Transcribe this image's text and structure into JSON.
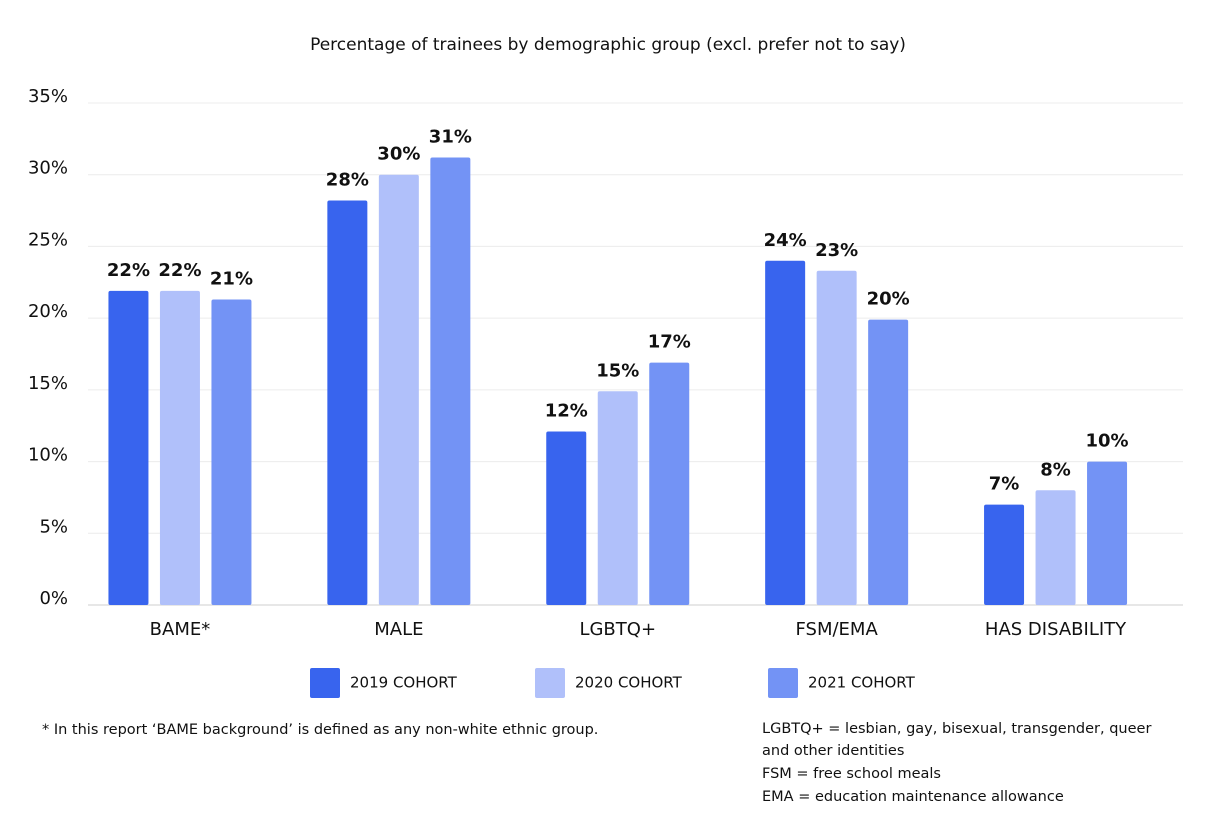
{
  "chart_data": {
    "type": "bar",
    "title": "Percentage of trainees by demographic group (excl. prefer not to say)",
    "categories": [
      "BAME*",
      "MALE",
      "LGBTQ+",
      "FSM/EMA",
      "HAS DISABILITY"
    ],
    "series": [
      {
        "name": "2019 COHORT",
        "color": "#3864ee",
        "values": [
          21.9,
          28.2,
          12.1,
          24,
          7
        ],
        "value_labels": [
          "22%",
          "28%",
          "12%",
          "24%",
          "7%"
        ]
      },
      {
        "name": "2020 COHORT",
        "color": "#b0c0fa",
        "values": [
          21.9,
          30,
          14.9,
          23.3,
          8
        ],
        "value_labels": [
          "22%",
          "30%",
          "15%",
          "23%",
          "8%"
        ]
      },
      {
        "name": "2021 COHORT",
        "color": "#7393f5",
        "values": [
          21.3,
          31.2,
          16.9,
          19.9,
          10
        ],
        "value_labels": [
          "21%",
          "31%",
          "17%",
          "20%",
          "10%"
        ]
      }
    ],
    "ylim": [
      0,
      35
    ],
    "yticks": [
      {
        "value": 0,
        "label": "0%"
      },
      {
        "value": 5,
        "label": "5%"
      },
      {
        "value": 10,
        "label": "10%"
      },
      {
        "value": 15,
        "label": "15%"
      },
      {
        "value": 20,
        "label": "20%"
      },
      {
        "value": 25,
        "label": "25%"
      },
      {
        "value": 30,
        "label": "30%"
      },
      {
        "value": 35,
        "label": "35%"
      }
    ],
    "grid": true
  },
  "footnotes": {
    "left": "* In this report ‘BAME background’ is defined as any non-white ethnic group.",
    "right": [
      "LGBTQ+ = lesbian, gay, bisexual, transgender, queer",
      "and other identities",
      "FSM = free school meals",
      "EMA = education maintenance allowance"
    ]
  }
}
